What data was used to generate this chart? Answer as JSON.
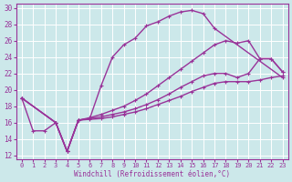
{
  "xlabel": "Windchill (Refroidissement éolien,°C)",
  "background_color": "#cce8ea",
  "grid_color": "#b8dde0",
  "line_color": "#993399",
  "xlim": [
    -0.5,
    23.5
  ],
  "ylim": [
    11.5,
    30.5
  ],
  "xticks": [
    0,
    1,
    2,
    3,
    4,
    5,
    6,
    7,
    8,
    9,
    10,
    11,
    12,
    13,
    14,
    15,
    16,
    17,
    18,
    19,
    20,
    21,
    22,
    23
  ],
  "yticks": [
    12,
    14,
    16,
    18,
    20,
    22,
    24,
    26,
    28,
    30
  ],
  "curve1_x": [
    0,
    1,
    2,
    3,
    4,
    5,
    6,
    7,
    8,
    9,
    10,
    11,
    12,
    13,
    14,
    15,
    16,
    17,
    23
  ],
  "curve1_y": [
    19.0,
    15.0,
    15.0,
    16.0,
    12.5,
    16.3,
    16.5,
    20.5,
    24.0,
    25.5,
    26.3,
    27.8,
    28.3,
    29.0,
    29.5,
    29.7,
    29.3,
    27.5,
    21.5
  ],
  "curve2_x": [
    0,
    3,
    4,
    5,
    6,
    7,
    8,
    9,
    10,
    11,
    12,
    13,
    14,
    15,
    16,
    17,
    18,
    19,
    20,
    21,
    22,
    23
  ],
  "curve2_y": [
    19.0,
    16.0,
    12.5,
    16.3,
    16.6,
    17.0,
    17.5,
    18.0,
    18.7,
    19.5,
    20.5,
    21.5,
    22.5,
    23.5,
    24.5,
    25.5,
    26.0,
    25.7,
    26.0,
    23.8,
    23.8,
    22.2
  ],
  "curve3_x": [
    0,
    3,
    4,
    5,
    6,
    7,
    8,
    9,
    10,
    11,
    12,
    13,
    14,
    15,
    16,
    17,
    18,
    19,
    20,
    21,
    22,
    23
  ],
  "curve3_y": [
    19.0,
    16.0,
    12.5,
    16.3,
    16.5,
    16.7,
    17.0,
    17.3,
    17.7,
    18.2,
    18.8,
    19.5,
    20.3,
    21.0,
    21.7,
    22.0,
    22.0,
    21.5,
    22.0,
    23.8,
    23.8,
    22.2
  ],
  "curve4_x": [
    0,
    3,
    4,
    5,
    6,
    7,
    8,
    9,
    10,
    11,
    12,
    13,
    14,
    15,
    16,
    17,
    18,
    19,
    20,
    21,
    22,
    23
  ],
  "curve4_y": [
    19.0,
    16.0,
    12.5,
    16.3,
    16.4,
    16.5,
    16.7,
    17.0,
    17.3,
    17.7,
    18.2,
    18.7,
    19.2,
    19.8,
    20.3,
    20.8,
    21.0,
    21.0,
    21.0,
    21.2,
    21.5,
    21.7
  ]
}
